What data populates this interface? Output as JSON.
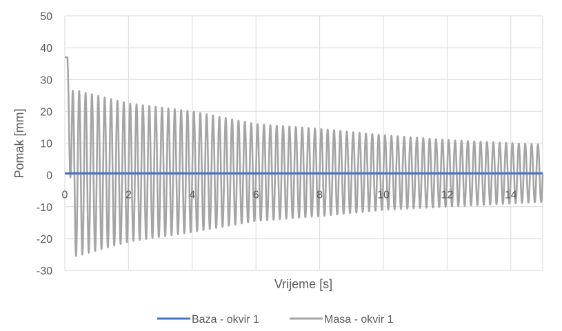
{
  "chart_data": {
    "type": "line",
    "xlabel": "Vrijeme [s]",
    "ylabel": "Pomak [mm]",
    "xlim": [
      0,
      15
    ],
    "ylim": [
      -30,
      50
    ],
    "xticks": [
      0,
      2,
      4,
      6,
      8,
      10,
      12,
      14
    ],
    "yticks": [
      -30,
      -20,
      -10,
      0,
      10,
      20,
      30,
      40,
      50
    ],
    "grid": true,
    "legend_position": "bottom",
    "series": [
      {
        "name": "Baza - okvir 1",
        "color": "#4472C4",
        "x": [
          0,
          15
        ],
        "y": [
          0.5,
          0.5
        ]
      },
      {
        "name": "Masa - okvir 1",
        "color": "#A5A5A5",
        "model": "damped-oscillation",
        "start_value": 37,
        "period_s": 0.2,
        "peaks": [
          {
            "t": 0.4,
            "max": 26.5,
            "min": -25.5
          },
          {
            "t": 2,
            "max": 22.5,
            "min": -21
          },
          {
            "t": 4,
            "max": 20,
            "min": -18
          },
          {
            "t": 6,
            "max": 16,
            "min": -14.5
          },
          {
            "t": 8,
            "max": 14.5,
            "min": -13
          },
          {
            "t": 10,
            "max": 12.5,
            "min": -11
          },
          {
            "t": 12,
            "max": 11,
            "min": -10
          },
          {
            "t": 14,
            "max": 10,
            "min": -9
          },
          {
            "t": 15,
            "max": 9.5,
            "min": -8.5
          }
        ]
      }
    ]
  }
}
